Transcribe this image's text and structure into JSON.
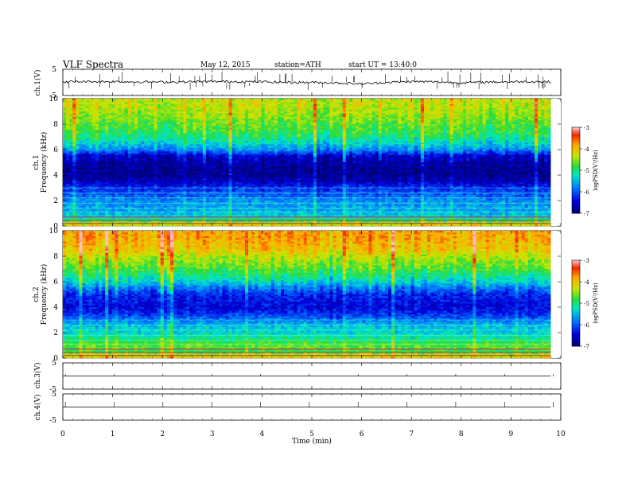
{
  "header": {
    "title": "VLF  Spectra",
    "date": "May 12, 2015",
    "station": "station=ATH",
    "start": "start  UT  =   13:40:0"
  },
  "chart_data": [
    {
      "type": "line",
      "panel": "ch1-waveform",
      "ylabel": "ch.1(V)",
      "ylim": [
        -5,
        5
      ],
      "yticks": [
        5,
        -5
      ],
      "x": [
        0,
        0.5,
        1,
        1.5,
        2,
        2.5,
        3,
        3.5,
        4,
        4.5,
        5,
        5.5,
        6,
        6.5,
        7,
        7.5,
        8,
        8.5,
        9,
        9.5,
        9.8
      ],
      "values": [
        0.2,
        0.3,
        0.3,
        0.2,
        0.1,
        0.2,
        0.3,
        0.3,
        0.2,
        0.0,
        0.0,
        -0.2,
        -0.6,
        0.0,
        0.3,
        0.2,
        -0.2,
        0.1,
        0.2,
        0.3,
        0.2
      ],
      "color": "#000000"
    },
    {
      "type": "heatmap",
      "panel": "ch1-spectrogram",
      "ylabel": "ch.1\nFrequency  (kHz)",
      "ylim": [
        0,
        10
      ],
      "yticks": [
        0,
        2,
        4,
        6,
        8,
        10
      ],
      "freq_profile_khz": [
        0,
        0.5,
        1,
        1.5,
        2,
        2.5,
        3,
        3.5,
        4,
        4.5,
        5,
        5.5,
        6,
        6.5,
        7,
        7.5,
        8,
        8.5,
        9,
        9.5,
        10
      ],
      "log_psd_profile": [
        -4.0,
        -5.0,
        -5.5,
        -5.6,
        -5.7,
        -6.0,
        -6.2,
        -6.6,
        -6.8,
        -6.8,
        -6.7,
        -6.5,
        -5.7,
        -5.3,
        -5.0,
        -4.8,
        -4.7,
        -4.5,
        -4.4,
        -4.3,
        -4.3
      ],
      "colorbar": {
        "label": "logPSD(V²/Hz)",
        "ticks": [
          -3,
          -4,
          -5,
          -6,
          -7
        ],
        "range": [
          -7,
          -3
        ]
      }
    },
    {
      "type": "heatmap",
      "panel": "ch2-spectrogram",
      "ylabel": "ch.2\nFrequency  (kHz)",
      "ylim": [
        0,
        10
      ],
      "yticks": [
        0,
        2,
        4,
        6,
        8,
        10
      ],
      "freq_profile_khz": [
        0,
        0.5,
        1,
        1.5,
        2,
        2.5,
        3,
        3.5,
        4,
        4.5,
        5,
        5.5,
        6,
        6.5,
        7,
        7.5,
        8,
        8.5,
        9,
        9.5,
        10
      ],
      "log_psd_profile": [
        -4.0,
        -4.8,
        -4.6,
        -5.0,
        -5.3,
        -5.4,
        -5.8,
        -6.2,
        -6.4,
        -6.3,
        -6.2,
        -5.8,
        -5.3,
        -5.0,
        -4.7,
        -4.5,
        -4.3,
        -4.0,
        -3.9,
        -3.8,
        -3.8
      ],
      "colorbar": {
        "label": "logPSD(V²/Hz)",
        "ticks": [
          -3,
          -4,
          -5,
          -6,
          -7
        ],
        "range": [
          -7,
          -3
        ]
      }
    },
    {
      "type": "line",
      "panel": "ch3-waveform",
      "ylabel": "ch.3(V)",
      "ylim": [
        -5,
        5
      ],
      "yticks": [
        5,
        -5
      ],
      "x": [
        0,
        9.8
      ],
      "values": [
        0,
        0
      ],
      "color": "#000000"
    },
    {
      "type": "line",
      "panel": "ch4-waveform",
      "ylabel": "ch.4(V)",
      "ylim": [
        -5,
        5
      ],
      "yticks": [
        5,
        -5
      ],
      "x": [
        0,
        9.8
      ],
      "values": [
        0,
        0
      ],
      "color": "#000000"
    }
  ],
  "xaxis": {
    "label": "Time  (min)",
    "ticks": [
      0,
      1,
      2,
      3,
      4,
      5,
      6,
      7,
      8,
      9,
      10
    ],
    "range": [
      0,
      10
    ],
    "data_end": 9.8
  }
}
